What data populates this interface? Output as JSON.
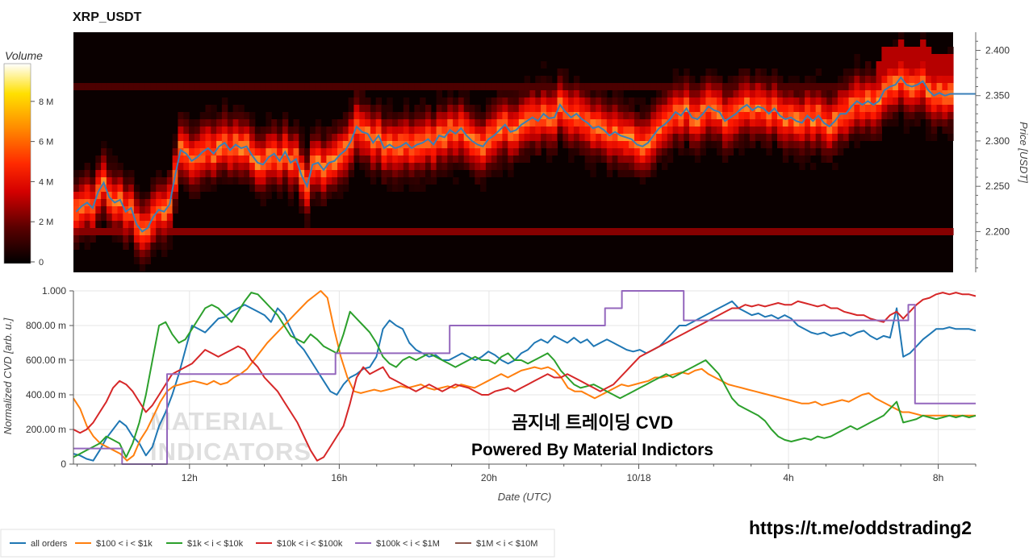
{
  "page": {
    "title": "XRP_USDT",
    "url_text": "https://t.me/oddstrading2",
    "watermark_lines": [
      "MATERIAL",
      "INDICATORS"
    ]
  },
  "colorbar": {
    "title": "Volume",
    "ticks": [
      "8 M",
      "6 M",
      "4 M",
      "2 M",
      "0"
    ],
    "tick_values": [
      8,
      6,
      4,
      2,
      0
    ],
    "max": 9.8
  },
  "chart_data": [
    {
      "type": "heatmap",
      "ylabel": "Price [USDT]",
      "yticks": [
        "2.400",
        "2.350",
        "2.300",
        "2.250",
        "2.200"
      ],
      "ytick_values": [
        2.4,
        2.35,
        2.3,
        2.25,
        2.2
      ],
      "ylim": [
        2.155,
        2.42
      ],
      "series": [
        {
          "name": "Price",
          "color": "#3a7fb8",
          "values": [
            2.222,
            2.228,
            2.232,
            2.226,
            2.244,
            2.254,
            2.238,
            2.232,
            2.235,
            2.222,
            2.226,
            2.208,
            2.2,
            2.204,
            2.216,
            2.224,
            2.222,
            2.23,
            2.262,
            2.29,
            2.286,
            2.278,
            2.282,
            2.288,
            2.292,
            2.286,
            2.294,
            2.298,
            2.29,
            2.296,
            2.292,
            2.294,
            2.284,
            2.276,
            2.274,
            2.282,
            2.286,
            2.278,
            2.288,
            2.276,
            2.28,
            2.262,
            2.25,
            2.274,
            2.276,
            2.268,
            2.276,
            2.278,
            2.285,
            2.29,
            2.3,
            2.316,
            2.31,
            2.308,
            2.298,
            2.306,
            2.292,
            2.296,
            2.292,
            2.294,
            2.298,
            2.292,
            2.296,
            2.298,
            2.302,
            2.296,
            2.306,
            2.304,
            2.312,
            2.308,
            2.314,
            2.306,
            2.3,
            2.296,
            2.294,
            2.302,
            2.306,
            2.312,
            2.318,
            2.31,
            2.312,
            2.318,
            2.322,
            2.326,
            2.322,
            2.33,
            2.325,
            2.326,
            2.34,
            2.332,
            2.326,
            2.33,
            2.324,
            2.32,
            2.314,
            2.316,
            2.312,
            2.306,
            2.31,
            2.306,
            2.304,
            2.302,
            2.296,
            2.294,
            2.298,
            2.306,
            2.314,
            2.318,
            2.324,
            2.332,
            2.328,
            2.336,
            2.326,
            2.324,
            2.33,
            2.338,
            2.334,
            2.332,
            2.322,
            2.326,
            2.33,
            2.336,
            2.34,
            2.334,
            2.338,
            2.336,
            2.33,
            2.336,
            2.328,
            2.324,
            2.326,
            2.322,
            2.32,
            2.328,
            2.322,
            2.328,
            2.32,
            2.316,
            2.322,
            2.33,
            2.33,
            2.338,
            2.344,
            2.34,
            2.344,
            2.34,
            2.344,
            2.356,
            2.36,
            2.362,
            2.37,
            2.362,
            2.36,
            2.362,
            2.366,
            2.356,
            2.35,
            2.353,
            2.35,
            2.352
          ]
        }
      ]
    },
    {
      "type": "line",
      "xlabel": "Date (UTC)",
      "ylabel": "Normalized CVD [arb. u.]",
      "ylim": [
        0,
        1.0
      ],
      "yticks": [
        "0",
        "200.00 m",
        "400.00 m",
        "600.00 m",
        "800.00 m",
        "1.000"
      ],
      "ytick_values": [
        0,
        0.2,
        0.4,
        0.6,
        0.8,
        1.0
      ],
      "xticks": [
        "12h",
        "16h",
        "20h",
        "10/18",
        "4h",
        "8h"
      ],
      "xtick_hours": [
        12,
        16,
        20,
        24,
        28,
        32
      ],
      "x_start_hour": 8.9,
      "x_end_hour": 33.0,
      "legend_position": "bottom",
      "annotation": [
        "곰지네 트레이딩 CVD",
        "Powered By Material Indictors"
      ],
      "series": [
        {
          "name": "all orders",
          "color": "#1f77b4",
          "values": [
            0.06,
            0.05,
            0.03,
            0.02,
            0.08,
            0.15,
            0.2,
            0.25,
            0.22,
            0.16,
            0.12,
            0.05,
            0.1,
            0.22,
            0.3,
            0.4,
            0.52,
            0.66,
            0.8,
            0.78,
            0.76,
            0.8,
            0.84,
            0.85,
            0.88,
            0.9,
            0.92,
            0.9,
            0.88,
            0.86,
            0.82,
            0.9,
            0.86,
            0.78,
            0.7,
            0.66,
            0.6,
            0.54,
            0.48,
            0.42,
            0.4,
            0.46,
            0.5,
            0.52,
            0.55,
            0.56,
            0.62,
            0.78,
            0.83,
            0.8,
            0.78,
            0.7,
            0.66,
            0.64,
            0.62,
            0.63,
            0.6,
            0.6,
            0.62,
            0.64,
            0.62,
            0.6,
            0.62,
            0.65,
            0.63,
            0.6,
            0.58,
            0.6,
            0.64,
            0.66,
            0.7,
            0.72,
            0.7,
            0.74,
            0.72,
            0.7,
            0.73,
            0.7,
            0.72,
            0.68,
            0.7,
            0.72,
            0.7,
            0.68,
            0.66,
            0.65,
            0.66,
            0.64,
            0.66,
            0.68,
            0.72,
            0.76,
            0.8,
            0.8,
            0.82,
            0.84,
            0.86,
            0.88,
            0.9,
            0.92,
            0.94,
            0.9,
            0.88,
            0.86,
            0.87,
            0.85,
            0.86,
            0.84,
            0.86,
            0.84,
            0.8,
            0.78,
            0.76,
            0.75,
            0.76,
            0.74,
            0.75,
            0.76,
            0.74,
            0.76,
            0.77,
            0.74,
            0.72,
            0.74,
            0.73,
            0.9,
            0.62,
            0.64,
            0.68,
            0.72,
            0.75,
            0.78,
            0.78,
            0.79,
            0.78,
            0.78,
            0.78,
            0.77
          ]
        },
        {
          "name": "$100 < i < $1k",
          "color": "#ff7f0e",
          "values": [
            0.38,
            0.32,
            0.22,
            0.16,
            0.12,
            0.1,
            0.08,
            0.06,
            0.02,
            0.05,
            0.14,
            0.2,
            0.28,
            0.36,
            0.42,
            0.45,
            0.46,
            0.47,
            0.48,
            0.47,
            0.46,
            0.48,
            0.46,
            0.47,
            0.5,
            0.52,
            0.55,
            0.6,
            0.65,
            0.7,
            0.74,
            0.78,
            0.82,
            0.86,
            0.9,
            0.94,
            0.97,
            1.0,
            0.96,
            0.78,
            0.62,
            0.5,
            0.42,
            0.41,
            0.42,
            0.43,
            0.42,
            0.43,
            0.44,
            0.45,
            0.44,
            0.45,
            0.46,
            0.44,
            0.43,
            0.44,
            0.45,
            0.44,
            0.46,
            0.45,
            0.44,
            0.46,
            0.48,
            0.5,
            0.52,
            0.5,
            0.52,
            0.54,
            0.55,
            0.56,
            0.55,
            0.56,
            0.54,
            0.5,
            0.44,
            0.42,
            0.42,
            0.4,
            0.38,
            0.4,
            0.42,
            0.44,
            0.46,
            0.45,
            0.46,
            0.47,
            0.48,
            0.5,
            0.5,
            0.51,
            0.52,
            0.53,
            0.52,
            0.54,
            0.55,
            0.52,
            0.5,
            0.48,
            0.46,
            0.45,
            0.44,
            0.43,
            0.42,
            0.41,
            0.4,
            0.39,
            0.38,
            0.37,
            0.36,
            0.35,
            0.35,
            0.36,
            0.34,
            0.35,
            0.36,
            0.37,
            0.36,
            0.38,
            0.4,
            0.41,
            0.38,
            0.36,
            0.34,
            0.32,
            0.3,
            0.3,
            0.29,
            0.28,
            0.28,
            0.28,
            0.28,
            0.28,
            0.28,
            0.28,
            0.28,
            0.28
          ]
        },
        {
          "name": "$1k < i < $10k",
          "color": "#2ca02c",
          "values": [
            0.04,
            0.06,
            0.08,
            0.1,
            0.12,
            0.16,
            0.14,
            0.12,
            0.04,
            0.12,
            0.24,
            0.4,
            0.6,
            0.8,
            0.82,
            0.75,
            0.7,
            0.72,
            0.78,
            0.84,
            0.9,
            0.92,
            0.9,
            0.86,
            0.82,
            0.88,
            0.94,
            0.99,
            0.98,
            0.94,
            0.9,
            0.86,
            0.8,
            0.74,
            0.72,
            0.7,
            0.75,
            0.72,
            0.68,
            0.66,
            0.64,
            0.75,
            0.88,
            0.84,
            0.8,
            0.76,
            0.7,
            0.62,
            0.58,
            0.56,
            0.6,
            0.62,
            0.6,
            0.62,
            0.64,
            0.62,
            0.6,
            0.58,
            0.56,
            0.58,
            0.6,
            0.62,
            0.6,
            0.6,
            0.58,
            0.62,
            0.64,
            0.6,
            0.6,
            0.58,
            0.6,
            0.62,
            0.64,
            0.6,
            0.54,
            0.5,
            0.46,
            0.44,
            0.45,
            0.46,
            0.44,
            0.42,
            0.4,
            0.38,
            0.4,
            0.42,
            0.44,
            0.46,
            0.48,
            0.5,
            0.52,
            0.5,
            0.52,
            0.54,
            0.56,
            0.58,
            0.6,
            0.56,
            0.52,
            0.45,
            0.38,
            0.34,
            0.32,
            0.3,
            0.28,
            0.25,
            0.2,
            0.16,
            0.14,
            0.13,
            0.14,
            0.15,
            0.14,
            0.16,
            0.15,
            0.16,
            0.18,
            0.2,
            0.22,
            0.2,
            0.22,
            0.24,
            0.26,
            0.28,
            0.32,
            0.36,
            0.24,
            0.25,
            0.26,
            0.28,
            0.27,
            0.26,
            0.27,
            0.28,
            0.27,
            0.28,
            0.27,
            0.28
          ]
        },
        {
          "name": "$10k < i < $100k",
          "color": "#d62728",
          "values": [
            0.2,
            0.18,
            0.2,
            0.24,
            0.3,
            0.36,
            0.44,
            0.48,
            0.46,
            0.42,
            0.36,
            0.3,
            0.34,
            0.4,
            0.46,
            0.52,
            0.54,
            0.56,
            0.58,
            0.62,
            0.66,
            0.64,
            0.62,
            0.64,
            0.66,
            0.68,
            0.66,
            0.6,
            0.56,
            0.5,
            0.46,
            0.42,
            0.36,
            0.3,
            0.24,
            0.16,
            0.08,
            0.02,
            0.04,
            0.1,
            0.16,
            0.22,
            0.35,
            0.5,
            0.56,
            0.52,
            0.54,
            0.56,
            0.5,
            0.48,
            0.46,
            0.44,
            0.42,
            0.44,
            0.46,
            0.44,
            0.42,
            0.44,
            0.46,
            0.45,
            0.44,
            0.42,
            0.4,
            0.4,
            0.42,
            0.43,
            0.44,
            0.42,
            0.44,
            0.46,
            0.48,
            0.5,
            0.52,
            0.5,
            0.5,
            0.52,
            0.5,
            0.48,
            0.46,
            0.44,
            0.42,
            0.44,
            0.46,
            0.5,
            0.54,
            0.58,
            0.62,
            0.64,
            0.66,
            0.68,
            0.7,
            0.72,
            0.74,
            0.76,
            0.78,
            0.8,
            0.82,
            0.84,
            0.86,
            0.88,
            0.9,
            0.9,
            0.92,
            0.91,
            0.92,
            0.91,
            0.92,
            0.93,
            0.92,
            0.92,
            0.94,
            0.93,
            0.92,
            0.91,
            0.92,
            0.9,
            0.9,
            0.88,
            0.87,
            0.86,
            0.86,
            0.84,
            0.83,
            0.82,
            0.86,
            0.88,
            0.84,
            0.88,
            0.92,
            0.95,
            0.96,
            0.98,
            0.99,
            0.98,
            0.99,
            0.98,
            0.98,
            0.97
          ]
        },
        {
          "name": "$100k < i < $1M",
          "color": "#9467bd",
          "step": [
            [
              8.9,
              0.09
            ],
            [
              10.2,
              0.09
            ],
            [
              10.2,
              0.0
            ],
            [
              11.4,
              0.0
            ],
            [
              11.4,
              0.52
            ],
            [
              15.9,
              0.52
            ],
            [
              15.9,
              0.64
            ],
            [
              18.95,
              0.64
            ],
            [
              18.95,
              0.8
            ],
            [
              23.1,
              0.8
            ],
            [
              23.1,
              0.9
            ],
            [
              23.55,
              0.9
            ],
            [
              23.55,
              1.0
            ],
            [
              25.2,
              1.0
            ],
            [
              25.2,
              0.83
            ],
            [
              31.2,
              0.83
            ],
            [
              31.2,
              0.92
            ],
            [
              31.38,
              0.92
            ],
            [
              31.38,
              0.35
            ],
            [
              33.0,
              0.35
            ]
          ]
        },
        {
          "name": "$1M < i < $10M",
          "color": "#8c564b",
          "values": []
        }
      ]
    }
  ]
}
